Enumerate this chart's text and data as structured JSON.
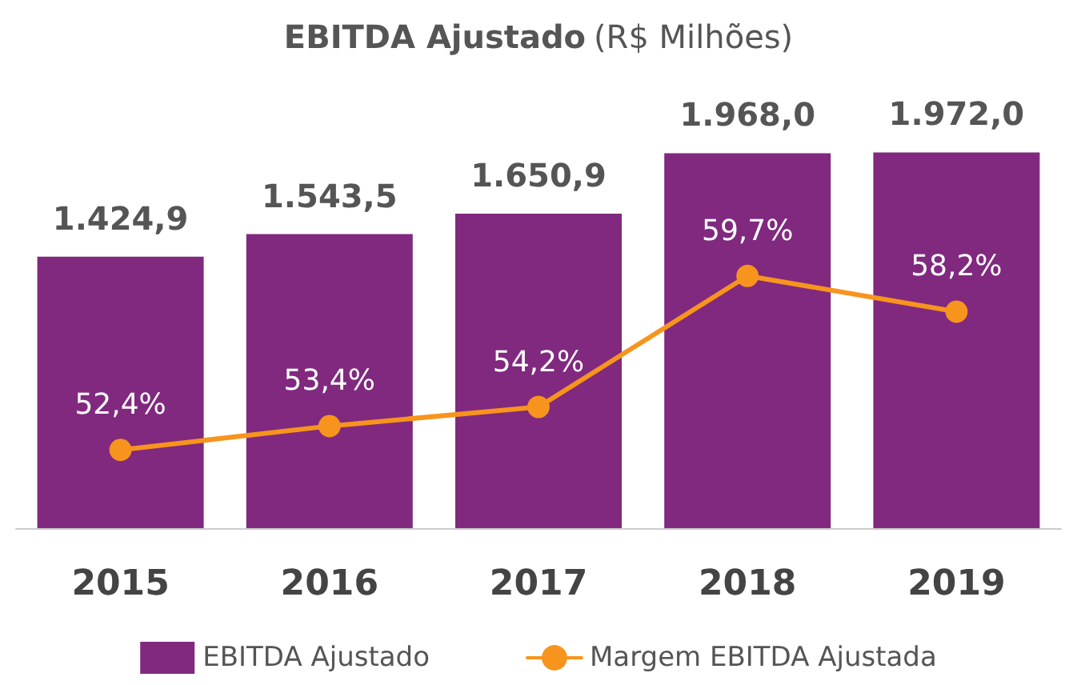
{
  "chart_data": {
    "type": "bar",
    "title": "EBITDA Ajustado",
    "subtitle": "(R$ Milhões)",
    "categories": [
      "2015",
      "2016",
      "2017",
      "2018",
      "2019"
    ],
    "series": [
      {
        "name": "EBITDA Ajustado",
        "color": "#80297f",
        "values": [
          1424.9,
          1543.5,
          1650.9,
          1968.0,
          1972.0
        ],
        "value_labels": [
          "1.424,9",
          "1.543,5",
          "1.650,9",
          "1.968,0",
          "1.972,0"
        ]
      },
      {
        "name": "Margem EBITDA Ajustada",
        "type": "line",
        "axis": "y2",
        "color": "#f7941d",
        "values": [
          52.4,
          53.4,
          54.2,
          59.7,
          58.2
        ],
        "value_labels": [
          "52,4%",
          "53,4%",
          "54,2%",
          "59,7%",
          "58,2%"
        ]
      }
    ],
    "tick_labels": "x",
    "grid": false,
    "legend": "bottom",
    "marker": "circle",
    "line_style": "solid"
  }
}
